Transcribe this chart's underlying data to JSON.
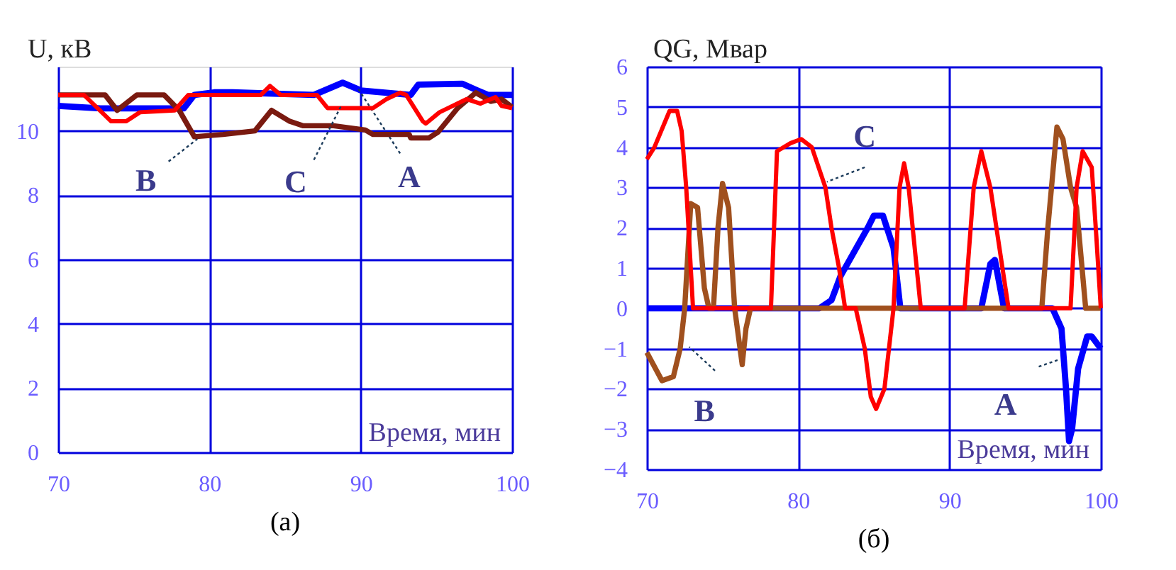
{
  "chart_data": [
    {
      "type": "line",
      "ylabel": "U, кВ",
      "xlabel": "Время, мин",
      "xlim": [
        70,
        100
      ],
      "xticks": [
        70,
        80,
        90,
        100
      ],
      "ylim": [
        0,
        12
      ],
      "yticks": [
        0,
        2,
        4,
        6,
        8,
        10
      ],
      "grid": true,
      "legend": false,
      "annotations": [
        "(а)"
      ],
      "series": [
        {
          "name": "A",
          "color": "#0000ff",
          "x": [
            70,
            72.8,
            74.8,
            78.3,
            79.0,
            80.3,
            81.5,
            86.9,
            88.5,
            88.8,
            90.0,
            93.3,
            93.8,
            96.7,
            97.7,
            98.4,
            100
          ],
          "values": [
            10.78,
            10.7,
            10.7,
            10.7,
            11.12,
            11.2,
            11.2,
            11.12,
            11.44,
            11.5,
            11.26,
            11.12,
            11.44,
            11.47,
            11.26,
            11.12,
            11.12
          ]
        },
        {
          "name": "B",
          "color": "#7a1a10",
          "x": [
            70,
            73.1,
            73.9,
            75.2,
            77.0,
            78.0,
            79.0,
            80.9,
            83.0,
            84.1,
            85.3,
            86.2,
            88.2,
            90.3,
            90.8,
            93.2,
            93.3,
            94.5,
            95.1,
            96.4,
            97.6,
            98.6,
            99.3,
            100
          ],
          "values": [
            11.12,
            11.12,
            10.64,
            11.12,
            11.12,
            10.64,
            9.82,
            9.89,
            10.0,
            10.64,
            10.3,
            10.16,
            10.16,
            10.03,
            9.89,
            9.89,
            9.78,
            9.78,
            9.96,
            10.71,
            11.19,
            10.92,
            10.99,
            10.74
          ]
        },
        {
          "name": "C",
          "color": "#ff0000",
          "x": [
            70,
            71.7,
            73.5,
            74.5,
            75.4,
            77.7,
            78.6,
            83.4,
            84.0,
            84.7,
            87.1,
            87.8,
            90.8,
            91.7,
            92.6,
            93.0,
            94.1,
            94.3,
            95.2,
            97.0,
            97.9,
            98.9,
            99.3,
            100
          ],
          "values": [
            11.12,
            11.12,
            10.3,
            10.3,
            10.58,
            10.64,
            11.12,
            11.12,
            11.4,
            11.12,
            11.12,
            10.71,
            10.71,
            10.99,
            11.19,
            11.12,
            10.3,
            10.23,
            10.58,
            10.99,
            10.85,
            11.05,
            10.78,
            10.71
          ]
        }
      ]
    },
    {
      "type": "line",
      "ylabel": "QG, Мвар",
      "xlabel": "Время, мин",
      "xlim": [
        70,
        100
      ],
      "xticks": [
        70,
        80,
        90,
        100
      ],
      "ylim": [
        -4,
        6
      ],
      "yticks": [
        -4,
        -3,
        -2,
        -1,
        0,
        1,
        2,
        3,
        4,
        5,
        6
      ],
      "grid": true,
      "legend": false,
      "annotations": [
        "(б)"
      ],
      "series": [
        {
          "name": "A",
          "color": "#0000ff",
          "x": [
            70,
            81.4,
            82.2,
            82.8,
            84.6,
            85.0,
            85.6,
            86.3,
            86.75,
            92.1,
            92.7,
            93.0,
            93.6,
            96.8,
            97.4,
            97.7,
            97.9,
            98.1,
            98.5,
            99.1,
            99.4,
            100
          ],
          "values": [
            0,
            0,
            0.2,
            0.8,
            2.0,
            2.3,
            2.3,
            1.5,
            0,
            0,
            1.1,
            1.2,
            0,
            0,
            -0.5,
            -2,
            -3.3,
            -3,
            -1.5,
            -0.7,
            -0.7,
            -1.0
          ]
        },
        {
          "name": "B",
          "color": "#a0501e",
          "x": [
            70,
            71.0,
            71.75,
            72.2,
            72.5,
            72.9,
            73.35,
            73.8,
            74.1,
            74.4,
            74.7,
            75.0,
            75.4,
            75.8,
            76.3,
            76.55,
            76.85,
            96.1,
            96.5,
            97.1,
            97.5,
            98.0,
            98.4,
            99.0,
            100
          ],
          "values": [
            -1.1,
            -1.8,
            -1.7,
            -1.0,
            0,
            2.6,
            2.5,
            0.5,
            0,
            0,
            2.0,
            3.1,
            2.5,
            0,
            -1.4,
            -0.5,
            0,
            0,
            2.0,
            4.5,
            4.2,
            3.0,
            2.5,
            0,
            0
          ]
        },
        {
          "name": "C",
          "color": "#ff0000",
          "x": [
            70,
            70.5,
            71.5,
            72.0,
            72.3,
            72.6,
            73.05,
            78.2,
            78.6,
            79.5,
            80.2,
            80.9,
            81.8,
            82.2,
            82.7,
            83.1,
            83.8,
            84.4,
            84.8,
            85.15,
            85.7,
            86.0,
            86.3,
            86.7,
            87.0,
            87.3,
            88.1,
            91.0,
            91.6,
            92.1,
            92.7,
            93.9,
            98.0,
            98.4,
            98.8,
            99.4,
            99.7,
            100
          ],
          "values": [
            3.7,
            4.0,
            4.9,
            4.9,
            4.4,
            3.0,
            0,
            0,
            3.9,
            4.1,
            4.2,
            4.0,
            3.0,
            2.0,
            1.0,
            0,
            0,
            -1.0,
            -2.2,
            -2.5,
            -2.0,
            -1.0,
            0,
            3.0,
            3.6,
            3.0,
            0,
            0,
            3.0,
            3.9,
            3.0,
            0,
            0,
            3.0,
            3.9,
            3.5,
            1.8,
            0
          ]
        }
      ]
    }
  ]
}
